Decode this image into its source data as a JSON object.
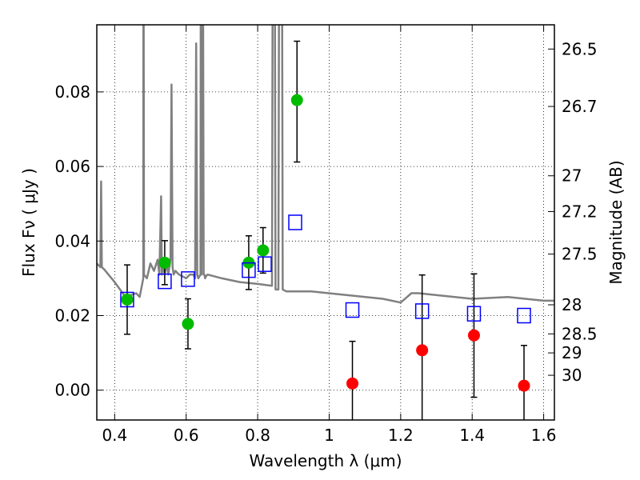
{
  "chart_data": {
    "type": "scatter",
    "title": "",
    "xlabel": "Wavelength  λ (μm)",
    "ylabel": "Flux  Fν  ( μJy )",
    "ylabel_right": "Magnitude (AB)",
    "xlim": [
      0.35,
      1.63
    ],
    "ylim": [
      -0.008,
      0.098
    ],
    "grid": true,
    "x_ticks": [
      0.4,
      0.6,
      0.8,
      1.0,
      1.2,
      1.4,
      1.6
    ],
    "x_tick_labels": [
      "0.4",
      "0.6",
      "0.8",
      "1",
      "1.2",
      "1.4",
      "1.6"
    ],
    "y_ticks": [
      0.0,
      0.02,
      0.04,
      0.06,
      0.08
    ],
    "y_tick_labels": [
      "0.00",
      "0.02",
      "0.04",
      "0.06",
      "0.08"
    ],
    "right_ticks": [
      {
        "label": "26.5",
        "flux": 0.0915
      },
      {
        "label": "26.7",
        "flux": 0.0761
      },
      {
        "label": "27",
        "flux": 0.0575
      },
      {
        "label": "27.2",
        "flux": 0.0479
      },
      {
        "label": "27.5",
        "flux": 0.0365
      },
      {
        "label": "28",
        "flux": 0.0229
      },
      {
        "label": "28.5",
        "flux": 0.0151
      },
      {
        "label": "29",
        "flux": 0.01
      },
      {
        "label": "30",
        "flux": 0.004
      }
    ],
    "series": [
      {
        "name": "model spectrum",
        "kind": "line",
        "color": "#808080",
        "x": [
          0.35,
          0.355,
          0.36,
          0.362,
          0.364,
          0.366,
          0.37,
          0.4,
          0.43,
          0.46,
          0.47,
          0.48,
          0.4805,
          0.481,
          0.482,
          0.49,
          0.5,
          0.51,
          0.52,
          0.525,
          0.53,
          0.532,
          0.535,
          0.54,
          0.545,
          0.55,
          0.556,
          0.559,
          0.562,
          0.565,
          0.57,
          0.58,
          0.6,
          0.61,
          0.62,
          0.625,
          0.628,
          0.631,
          0.634,
          0.64,
          0.641,
          0.642,
          0.643,
          0.645,
          0.647,
          0.649,
          0.651,
          0.653,
          0.655,
          0.66,
          0.7,
          0.75,
          0.8,
          0.84,
          0.842,
          0.845,
          0.848,
          0.85,
          0.858,
          0.86,
          0.862,
          0.866,
          0.868,
          0.87,
          0.88,
          0.95,
          1.05,
          1.15,
          1.2,
          1.23,
          1.25,
          1.3,
          1.4,
          1.5,
          1.6,
          1.63
        ],
        "y": [
          0.034,
          0.0335,
          0.033,
          0.056,
          0.033,
          0.0328,
          0.0325,
          0.029,
          0.025,
          0.026,
          0.025,
          0.03,
          0.12,
          0.12,
          0.031,
          0.03,
          0.034,
          0.032,
          0.035,
          0.031,
          0.052,
          0.031,
          0.034,
          0.031,
          0.034,
          0.031,
          0.035,
          0.082,
          0.033,
          0.031,
          0.032,
          0.031,
          0.03,
          0.031,
          0.031,
          0.03,
          0.093,
          0.031,
          0.03,
          0.031,
          0.12,
          0.12,
          0.031,
          0.12,
          0.12,
          0.031,
          0.031,
          0.03,
          0.0305,
          0.031,
          0.03,
          0.029,
          0.0285,
          0.028,
          0.12,
          0.12,
          0.12,
          0.027,
          0.027,
          0.12,
          0.12,
          0.12,
          0.12,
          0.027,
          0.0265,
          0.0265,
          0.0255,
          0.0245,
          0.0235,
          0.026,
          0.026,
          0.0255,
          0.0245,
          0.025,
          0.024,
          0.024
        ]
      },
      {
        "name": "green points",
        "kind": "points",
        "marker": "circle",
        "color": "#00bb00",
        "x": [
          0.435,
          0.54,
          0.605,
          0.775,
          0.815,
          0.91
        ],
        "y": [
          0.0243,
          0.0342,
          0.0178,
          0.0342,
          0.0375,
          0.0778
        ],
        "err_low": [
          0.0093,
          0.0059,
          0.0067,
          0.0072,
          0.0061,
          0.0166
        ],
        "err_high": [
          0.0093,
          0.0059,
          0.0067,
          0.0072,
          0.0061,
          0.0158
        ]
      },
      {
        "name": "red points",
        "kind": "points",
        "marker": "circle",
        "color": "#ff0000",
        "x": [
          1.065,
          1.26,
          1.405,
          1.545
        ],
        "y": [
          0.0018,
          0.0107,
          0.0147,
          0.0012
        ],
        "err_low": [
          0.0118,
          0.0202,
          0.0166,
          0.011
        ],
        "err_high": [
          0.0113,
          0.0202,
          0.0165,
          0.0108
        ]
      },
      {
        "name": "blue squares",
        "kind": "points",
        "marker": "square",
        "color": "#0000ff",
        "x": [
          0.435,
          0.54,
          0.605,
          0.775,
          0.82,
          0.905,
          1.065,
          1.26,
          1.405,
          1.545
        ],
        "y": [
          0.0243,
          0.0292,
          0.0298,
          0.0322,
          0.0338,
          0.045,
          0.0215,
          0.0212,
          0.0205,
          0.02
        ]
      }
    ]
  }
}
